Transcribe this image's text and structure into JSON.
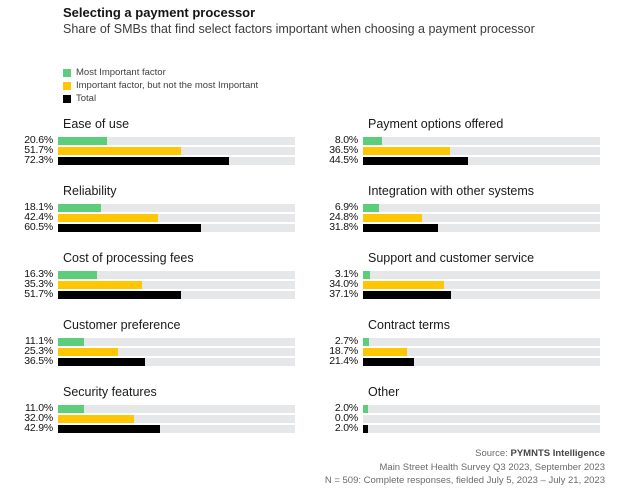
{
  "header": {
    "title": "Selecting a payment processor",
    "subtitle": "Share of SMBs that find select factors important when choosing a payment processor"
  },
  "legend": [
    {
      "label": "Most Important factor",
      "color": "#5ECD7B"
    },
    {
      "label": "Important factor, but not the most Important",
      "color": "#FFC603"
    },
    {
      "label": "Total",
      "color": "#000000"
    }
  ],
  "chart_data": {
    "type": "bar",
    "orientation": "horizontal",
    "unit": "%",
    "xlim": [
      0,
      100
    ],
    "grid": false,
    "track_color": "#E6E7E8",
    "series_names": [
      "Most Important factor",
      "Important factor, but not the most Important",
      "Total"
    ],
    "series_colors": [
      "#5ECD7B",
      "#FFC603",
      "#000000"
    ],
    "categories": [
      {
        "label": "Ease of use",
        "column": 0,
        "values": [
          20.6,
          51.7,
          72.3
        ],
        "value_labels": [
          "20.6%",
          "51.7%",
          "72.3%"
        ]
      },
      {
        "label": "Reliability",
        "column": 0,
        "values": [
          18.1,
          42.4,
          60.5
        ],
        "value_labels": [
          "18.1%",
          "42.4%",
          "60.5%"
        ]
      },
      {
        "label": "Cost of processing fees",
        "column": 0,
        "values": [
          16.3,
          35.3,
          51.7
        ],
        "value_labels": [
          "16.3%",
          "35.3%",
          "51.7%"
        ]
      },
      {
        "label": "Customer preference",
        "column": 0,
        "values": [
          11.1,
          25.3,
          36.5
        ],
        "value_labels": [
          "11.1%",
          "25.3%",
          "36.5%"
        ]
      },
      {
        "label": "Security features",
        "column": 0,
        "values": [
          11.0,
          32.0,
          42.9
        ],
        "value_labels": [
          "11.0%",
          "32.0%",
          "42.9%"
        ]
      },
      {
        "label": "Payment options offered",
        "column": 1,
        "values": [
          8.0,
          36.5,
          44.5
        ],
        "value_labels": [
          "8.0%",
          "36.5%",
          "44.5%"
        ]
      },
      {
        "label": "Integration with other systems",
        "column": 1,
        "values": [
          6.9,
          24.8,
          31.8
        ],
        "value_labels": [
          "6.9%",
          "24.8%",
          "31.8%"
        ]
      },
      {
        "label": "Support and customer service",
        "column": 1,
        "values": [
          3.1,
          34.0,
          37.1
        ],
        "value_labels": [
          "3.1%",
          "34.0%",
          "37.1%"
        ]
      },
      {
        "label": "Contract terms",
        "column": 1,
        "values": [
          2.7,
          18.7,
          21.4
        ],
        "value_labels": [
          "2.7%",
          "18.7%",
          "21.4%"
        ]
      },
      {
        "label": "Other",
        "column": 1,
        "values": [
          2.0,
          0.0,
          2.0
        ],
        "value_labels": [
          "2.0%",
          "0.0%",
          "2.0%"
        ]
      }
    ]
  },
  "footer": {
    "source_prefix": "Source: ",
    "source_name": "PYMNTS Intelligence",
    "line2": "Main Street Health Survey Q3 2023, September 2023",
    "line3": "N = 509: Complete responses, fielded July 5, 2023 – July 21, 2023"
  }
}
